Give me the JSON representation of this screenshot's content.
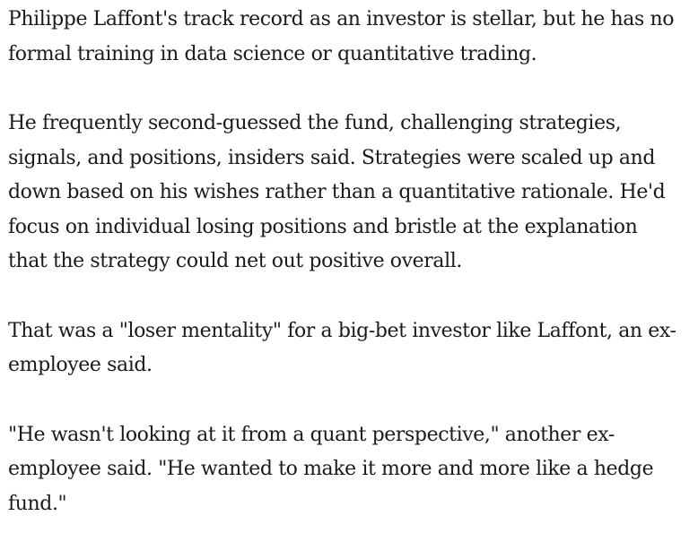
{
  "article": {
    "paragraphs": [
      {
        "lines": [
          "Philippe Laffont's track record as an investor is stellar, but he has no",
          "formal training in data science or quantitative trading."
        ]
      },
      {
        "lines": [
          "He frequently second-guessed the fund, challenging strategies,",
          "signals, and positions, insiders said. Strategies were scaled up and",
          "down based on his wishes rather than a quantitative rationale. He'd",
          "focus on individual losing positions and bristle at the explanation",
          "that the strategy could net out positive overall."
        ]
      },
      {
        "lines": [
          "That was a \"loser mentality\" for a big-bet investor like Laffont, an ex-",
          "employee said."
        ]
      },
      {
        "lines": [
          "\"He wasn't looking at it from a quant perspective,\" another ex-",
          "employee said. \"He wanted to make it more and more like a hedge",
          "fund.\""
        ]
      }
    ]
  }
}
